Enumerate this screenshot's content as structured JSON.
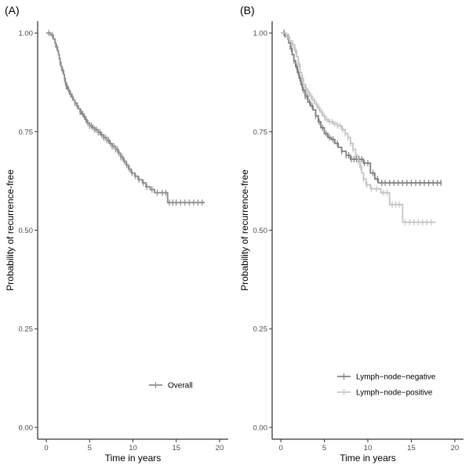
{
  "chart_data": [
    {
      "type": "line",
      "panel_label": "(A)",
      "xlabel": "Time in years",
      "ylabel": "Probability of recurrence-free",
      "xlim": [
        -1,
        21
      ],
      "ylim": [
        -0.03,
        1.03
      ],
      "xticks": [
        0,
        5,
        10,
        15,
        20
      ],
      "yticks": [
        0,
        0.25,
        0.5,
        0.75,
        1.0
      ],
      "ytick_labels": [
        "0.00",
        "0.25",
        "0.50",
        "0.75",
        "1.00"
      ],
      "grid": false,
      "legend_position": "bottom-right",
      "series": [
        {
          "name": "Overall",
          "color": "#8c8c8c",
          "steps": [
            [
              0,
              1.0
            ],
            [
              0.5,
              0.995
            ],
            [
              0.8,
              0.985
            ],
            [
              1.0,
              0.975
            ],
            [
              1.1,
              0.965
            ],
            [
              1.3,
              0.955
            ],
            [
              1.4,
              0.945
            ],
            [
              1.5,
              0.935
            ],
            [
              1.6,
              0.925
            ],
            [
              1.7,
              0.915
            ],
            [
              1.8,
              0.905
            ],
            [
              2.0,
              0.895
            ],
            [
              2.1,
              0.885
            ],
            [
              2.2,
              0.875
            ],
            [
              2.3,
              0.865
            ],
            [
              2.5,
              0.855
            ],
            [
              2.7,
              0.845
            ],
            [
              2.9,
              0.838
            ],
            [
              3.1,
              0.83
            ],
            [
              3.3,
              0.823
            ],
            [
              3.5,
              0.815
            ],
            [
              3.7,
              0.808
            ],
            [
              3.9,
              0.8
            ],
            [
              4.1,
              0.795
            ],
            [
              4.3,
              0.788
            ],
            [
              4.5,
              0.78
            ],
            [
              4.7,
              0.772
            ],
            [
              5.0,
              0.765
            ],
            [
              5.3,
              0.76
            ],
            [
              5.6,
              0.755
            ],
            [
              6.0,
              0.748
            ],
            [
              6.3,
              0.742
            ],
            [
              6.6,
              0.735
            ],
            [
              7.0,
              0.728
            ],
            [
              7.3,
              0.72
            ],
            [
              7.6,
              0.713
            ],
            [
              8.0,
              0.705
            ],
            [
              8.3,
              0.695
            ],
            [
              8.6,
              0.685
            ],
            [
              8.9,
              0.675
            ],
            [
              9.2,
              0.665
            ],
            [
              9.5,
              0.655
            ],
            [
              9.8,
              0.645
            ],
            [
              10.2,
              0.637
            ],
            [
              10.6,
              0.628
            ],
            [
              11.1,
              0.62
            ],
            [
              11.5,
              0.61
            ],
            [
              12.0,
              0.603
            ],
            [
              12.5,
              0.595
            ],
            [
              14.0,
              0.57
            ],
            [
              18.3,
              0.57
            ]
          ],
          "censor_x": [
            0.3,
            0.7,
            1.2,
            1.6,
            1.9,
            2.1,
            2.2,
            2.3,
            2.4,
            2.6,
            2.8,
            3.0,
            3.3,
            3.6,
            3.9,
            4.0,
            4.2,
            4.4,
            4.6,
            4.8,
            5.0,
            5.2,
            5.4,
            5.6,
            5.8,
            6.0,
            6.2,
            6.4,
            6.6,
            6.8,
            7.0,
            7.2,
            7.4,
            7.6,
            7.8,
            8.0,
            8.2,
            8.4,
            8.6,
            8.8,
            9.0,
            9.3,
            9.6,
            9.9,
            10.3,
            10.7,
            11.2,
            11.6,
            12.2,
            12.8,
            13.4,
            13.8,
            14.2,
            14.6,
            15.0,
            15.5,
            16.0,
            16.5,
            17.0,
            17.5,
            18.0
          ]
        }
      ]
    },
    {
      "type": "line",
      "panel_label": "(B)",
      "xlabel": "Time in years",
      "ylabel": "Probability of recurrence-free",
      "xlim": [
        -1,
        21
      ],
      "ylim": [
        -0.03,
        1.03
      ],
      "xticks": [
        0,
        5,
        10,
        15,
        20
      ],
      "yticks": [
        0,
        0.25,
        0.5,
        0.75,
        1.0
      ],
      "ytick_labels": [
        "0.00",
        "0.25",
        "0.50",
        "0.75",
        "1.00"
      ],
      "grid": false,
      "legend_position": "bottom-right",
      "series": [
        {
          "name": "Lymph−node−negative",
          "color": "#7f7f7f",
          "steps": [
            [
              0,
              1.0
            ],
            [
              0.5,
              0.99
            ],
            [
              0.9,
              0.975
            ],
            [
              1.1,
              0.96
            ],
            [
              1.3,
              0.945
            ],
            [
              1.5,
              0.93
            ],
            [
              1.7,
              0.915
            ],
            [
              1.9,
              0.9
            ],
            [
              2.1,
              0.885
            ],
            [
              2.3,
              0.87
            ],
            [
              2.5,
              0.855
            ],
            [
              2.8,
              0.84
            ],
            [
              3.1,
              0.825
            ],
            [
              3.4,
              0.815
            ],
            [
              3.7,
              0.805
            ],
            [
              4.0,
              0.79
            ],
            [
              4.3,
              0.775
            ],
            [
              4.6,
              0.76
            ],
            [
              5.0,
              0.745
            ],
            [
              5.4,
              0.735
            ],
            [
              5.8,
              0.73
            ],
            [
              6.2,
              0.72
            ],
            [
              6.6,
              0.71
            ],
            [
              7.0,
              0.7
            ],
            [
              7.5,
              0.69
            ],
            [
              8.0,
              0.68
            ],
            [
              9.5,
              0.67
            ],
            [
              10.3,
              0.645
            ],
            [
              10.8,
              0.63
            ],
            [
              11.2,
              0.62
            ],
            [
              18.5,
              0.62
            ]
          ],
          "censor_x": [
            0.4,
            0.8,
            1.2,
            1.5,
            1.8,
            2.0,
            2.2,
            2.4,
            2.6,
            2.8,
            3.0,
            3.3,
            3.6,
            4.0,
            4.4,
            4.8,
            5.2,
            5.6,
            6.0,
            6.5,
            7.0,
            7.5,
            7.8,
            8.1,
            8.4,
            8.7,
            9.0,
            9.3,
            9.6,
            10.0,
            10.6,
            11.1,
            11.6,
            12.0,
            12.5,
            13.0,
            13.5,
            14.0,
            14.5,
            15.0,
            15.5,
            16.0,
            16.5,
            17.0,
            17.5,
            18.0,
            18.4
          ]
        },
        {
          "name": "Lymph−node−positive",
          "color": "#c4c4c4",
          "steps": [
            [
              0,
              1.0
            ],
            [
              0.6,
              0.99
            ],
            [
              1.0,
              0.98
            ],
            [
              1.3,
              0.97
            ],
            [
              1.6,
              0.955
            ],
            [
              1.8,
              0.94
            ],
            [
              2.0,
              0.92
            ],
            [
              2.2,
              0.9
            ],
            [
              2.4,
              0.885
            ],
            [
              2.6,
              0.87
            ],
            [
              2.8,
              0.86
            ],
            [
              3.0,
              0.85
            ],
            [
              3.3,
              0.84
            ],
            [
              3.6,
              0.83
            ],
            [
              3.9,
              0.82
            ],
            [
              4.2,
              0.81
            ],
            [
              4.5,
              0.8
            ],
            [
              4.8,
              0.79
            ],
            [
              5.1,
              0.78
            ],
            [
              5.5,
              0.775
            ],
            [
              6.0,
              0.77
            ],
            [
              6.5,
              0.765
            ],
            [
              7.0,
              0.755
            ],
            [
              7.4,
              0.745
            ],
            [
              7.7,
              0.735
            ],
            [
              8.0,
              0.72
            ],
            [
              8.3,
              0.705
            ],
            [
              8.6,
              0.69
            ],
            [
              8.9,
              0.675
            ],
            [
              9.1,
              0.66
            ],
            [
              9.3,
              0.645
            ],
            [
              9.5,
              0.63
            ],
            [
              9.8,
              0.615
            ],
            [
              10.3,
              0.605
            ],
            [
              11.5,
              0.595
            ],
            [
              12.5,
              0.565
            ],
            [
              14.0,
              0.52
            ],
            [
              17.8,
              0.52
            ]
          ],
          "censor_x": [
            0.3,
            0.9,
            1.4,
            1.7,
            2.1,
            2.5,
            2.9,
            3.2,
            3.5,
            3.8,
            4.1,
            4.4,
            4.7,
            5.0,
            5.3,
            5.6,
            5.9,
            6.2,
            6.5,
            6.8,
            7.1,
            7.4,
            7.7,
            8.0,
            8.3,
            8.6,
            8.9,
            9.2,
            9.5,
            9.9,
            10.4,
            11.0,
            11.8,
            12.2,
            12.8,
            13.2,
            13.6,
            14.3,
            14.8,
            15.3,
            15.8,
            16.3,
            16.8,
            17.3
          ]
        }
      ]
    }
  ]
}
